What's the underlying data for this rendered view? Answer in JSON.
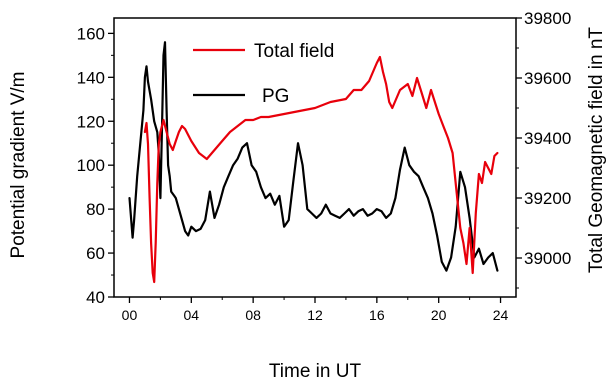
{
  "chart_data": {
    "type": "line",
    "xlabel": "Time in UT",
    "ylabel_left": "Potential gradient V/m",
    "ylabel_right": "Total Geomagnetic field in nT",
    "xlim": [
      -1,
      25
    ],
    "ylim_left": [
      40,
      167
    ],
    "ylim_right": [
      38870,
      39800
    ],
    "x_ticks": [
      "00",
      "04",
      "08",
      "12",
      "16",
      "20",
      "24"
    ],
    "y_left_ticks": [
      "40",
      "60",
      "80",
      "100",
      "120",
      "140",
      "160"
    ],
    "y_right_ticks": [
      "39000",
      "39200",
      "39400",
      "39600",
      "39800"
    ],
    "grid": false,
    "legend_position": "top-center",
    "series": [
      {
        "name": "Total field",
        "axis": "right",
        "color": "#e8000b",
        "x": [
          1.0,
          1.1,
          1.2,
          1.3,
          1.4,
          1.5,
          1.6,
          1.7,
          1.8,
          1.9,
          2.0,
          2.2,
          2.4,
          2.6,
          2.8,
          3.0,
          3.2,
          3.4,
          3.6,
          4.0,
          4.5,
          5.0,
          5.5,
          6.0,
          6.5,
          7.0,
          7.5,
          8.0,
          8.5,
          9.0,
          10.0,
          11.0,
          12.0,
          13.0,
          14.0,
          14.5,
          15.0,
          15.5,
          16.0,
          16.2,
          16.4,
          16.6,
          16.8,
          17.0,
          17.5,
          18.0,
          18.3,
          18.6,
          18.9,
          19.2,
          19.5,
          20.0,
          20.3,
          20.6,
          20.9,
          21.2,
          21.4,
          21.6,
          21.8,
          22.0,
          22.2,
          22.4,
          22.6,
          22.8,
          23.0,
          23.2,
          23.4,
          23.6,
          23.8
        ],
        "y": [
          39420,
          39450,
          39380,
          39200,
          39050,
          38950,
          38920,
          39050,
          39250,
          39380,
          39420,
          39460,
          39420,
          39380,
          39360,
          39390,
          39420,
          39440,
          39430,
          39390,
          39350,
          39330,
          39360,
          39390,
          39420,
          39440,
          39460,
          39460,
          39470,
          39470,
          39480,
          39490,
          39500,
          39520,
          39530,
          39560,
          39560,
          39590,
          39650,
          39670,
          39620,
          39580,
          39520,
          39500,
          39560,
          39580,
          39540,
          39600,
          39550,
          39500,
          39560,
          39480,
          39440,
          39400,
          39350,
          39200,
          39100,
          39050,
          38980,
          39100,
          38950,
          39150,
          39280,
          39250,
          39320,
          39300,
          39280,
          39340,
          39350
        ]
      },
      {
        "name": "PG",
        "axis": "left",
        "color": "#000000",
        "x": [
          0.0,
          0.2,
          0.3,
          0.5,
          0.7,
          0.9,
          1.0,
          1.1,
          1.2,
          1.4,
          1.6,
          1.8,
          1.9,
          2.0,
          2.1,
          2.2,
          2.3,
          2.4,
          2.5,
          2.6,
          2.7,
          2.9,
          3.0,
          3.2,
          3.4,
          3.6,
          3.8,
          4.0,
          4.3,
          4.6,
          4.9,
          5.2,
          5.5,
          5.8,
          6.1,
          6.4,
          6.7,
          7.0,
          7.3,
          7.6,
          7.9,
          8.2,
          8.5,
          8.8,
          9.1,
          9.4,
          9.7,
          10.0,
          10.3,
          10.6,
          10.9,
          11.2,
          11.5,
          11.8,
          12.1,
          12.4,
          12.7,
          13.0,
          13.3,
          13.6,
          13.9,
          14.2,
          14.5,
          14.8,
          15.1,
          15.4,
          15.7,
          16.0,
          16.3,
          16.6,
          16.9,
          17.2,
          17.5,
          17.8,
          18.1,
          18.4,
          18.7,
          19.0,
          19.3,
          19.6,
          19.9,
          20.2,
          20.5,
          20.8,
          21.1,
          21.4,
          21.7,
          22.0,
          22.3,
          22.6,
          22.9,
          23.2,
          23.5,
          23.8
        ],
        "y": [
          85,
          67,
          75,
          95,
          110,
          125,
          140,
          145,
          138,
          130,
          120,
          115,
          105,
          85,
          115,
          150,
          156,
          125,
          100,
          95,
          88,
          86,
          85,
          80,
          75,
          70,
          68,
          72,
          70,
          71,
          75,
          88,
          76,
          82,
          90,
          95,
          100,
          103,
          108,
          110,
          100,
          97,
          90,
          85,
          87,
          82,
          86,
          72,
          75,
          93,
          110,
          100,
          80,
          78,
          76,
          78,
          82,
          78,
          77,
          76,
          78,
          80,
          77,
          79,
          80,
          77,
          78,
          80,
          79,
          76,
          78,
          85,
          98,
          108,
          100,
          97,
          95,
          90,
          85,
          78,
          68,
          56,
          52,
          58,
          72,
          97,
          90,
          76,
          58,
          62,
          55,
          58,
          60,
          52
        ]
      }
    ]
  }
}
